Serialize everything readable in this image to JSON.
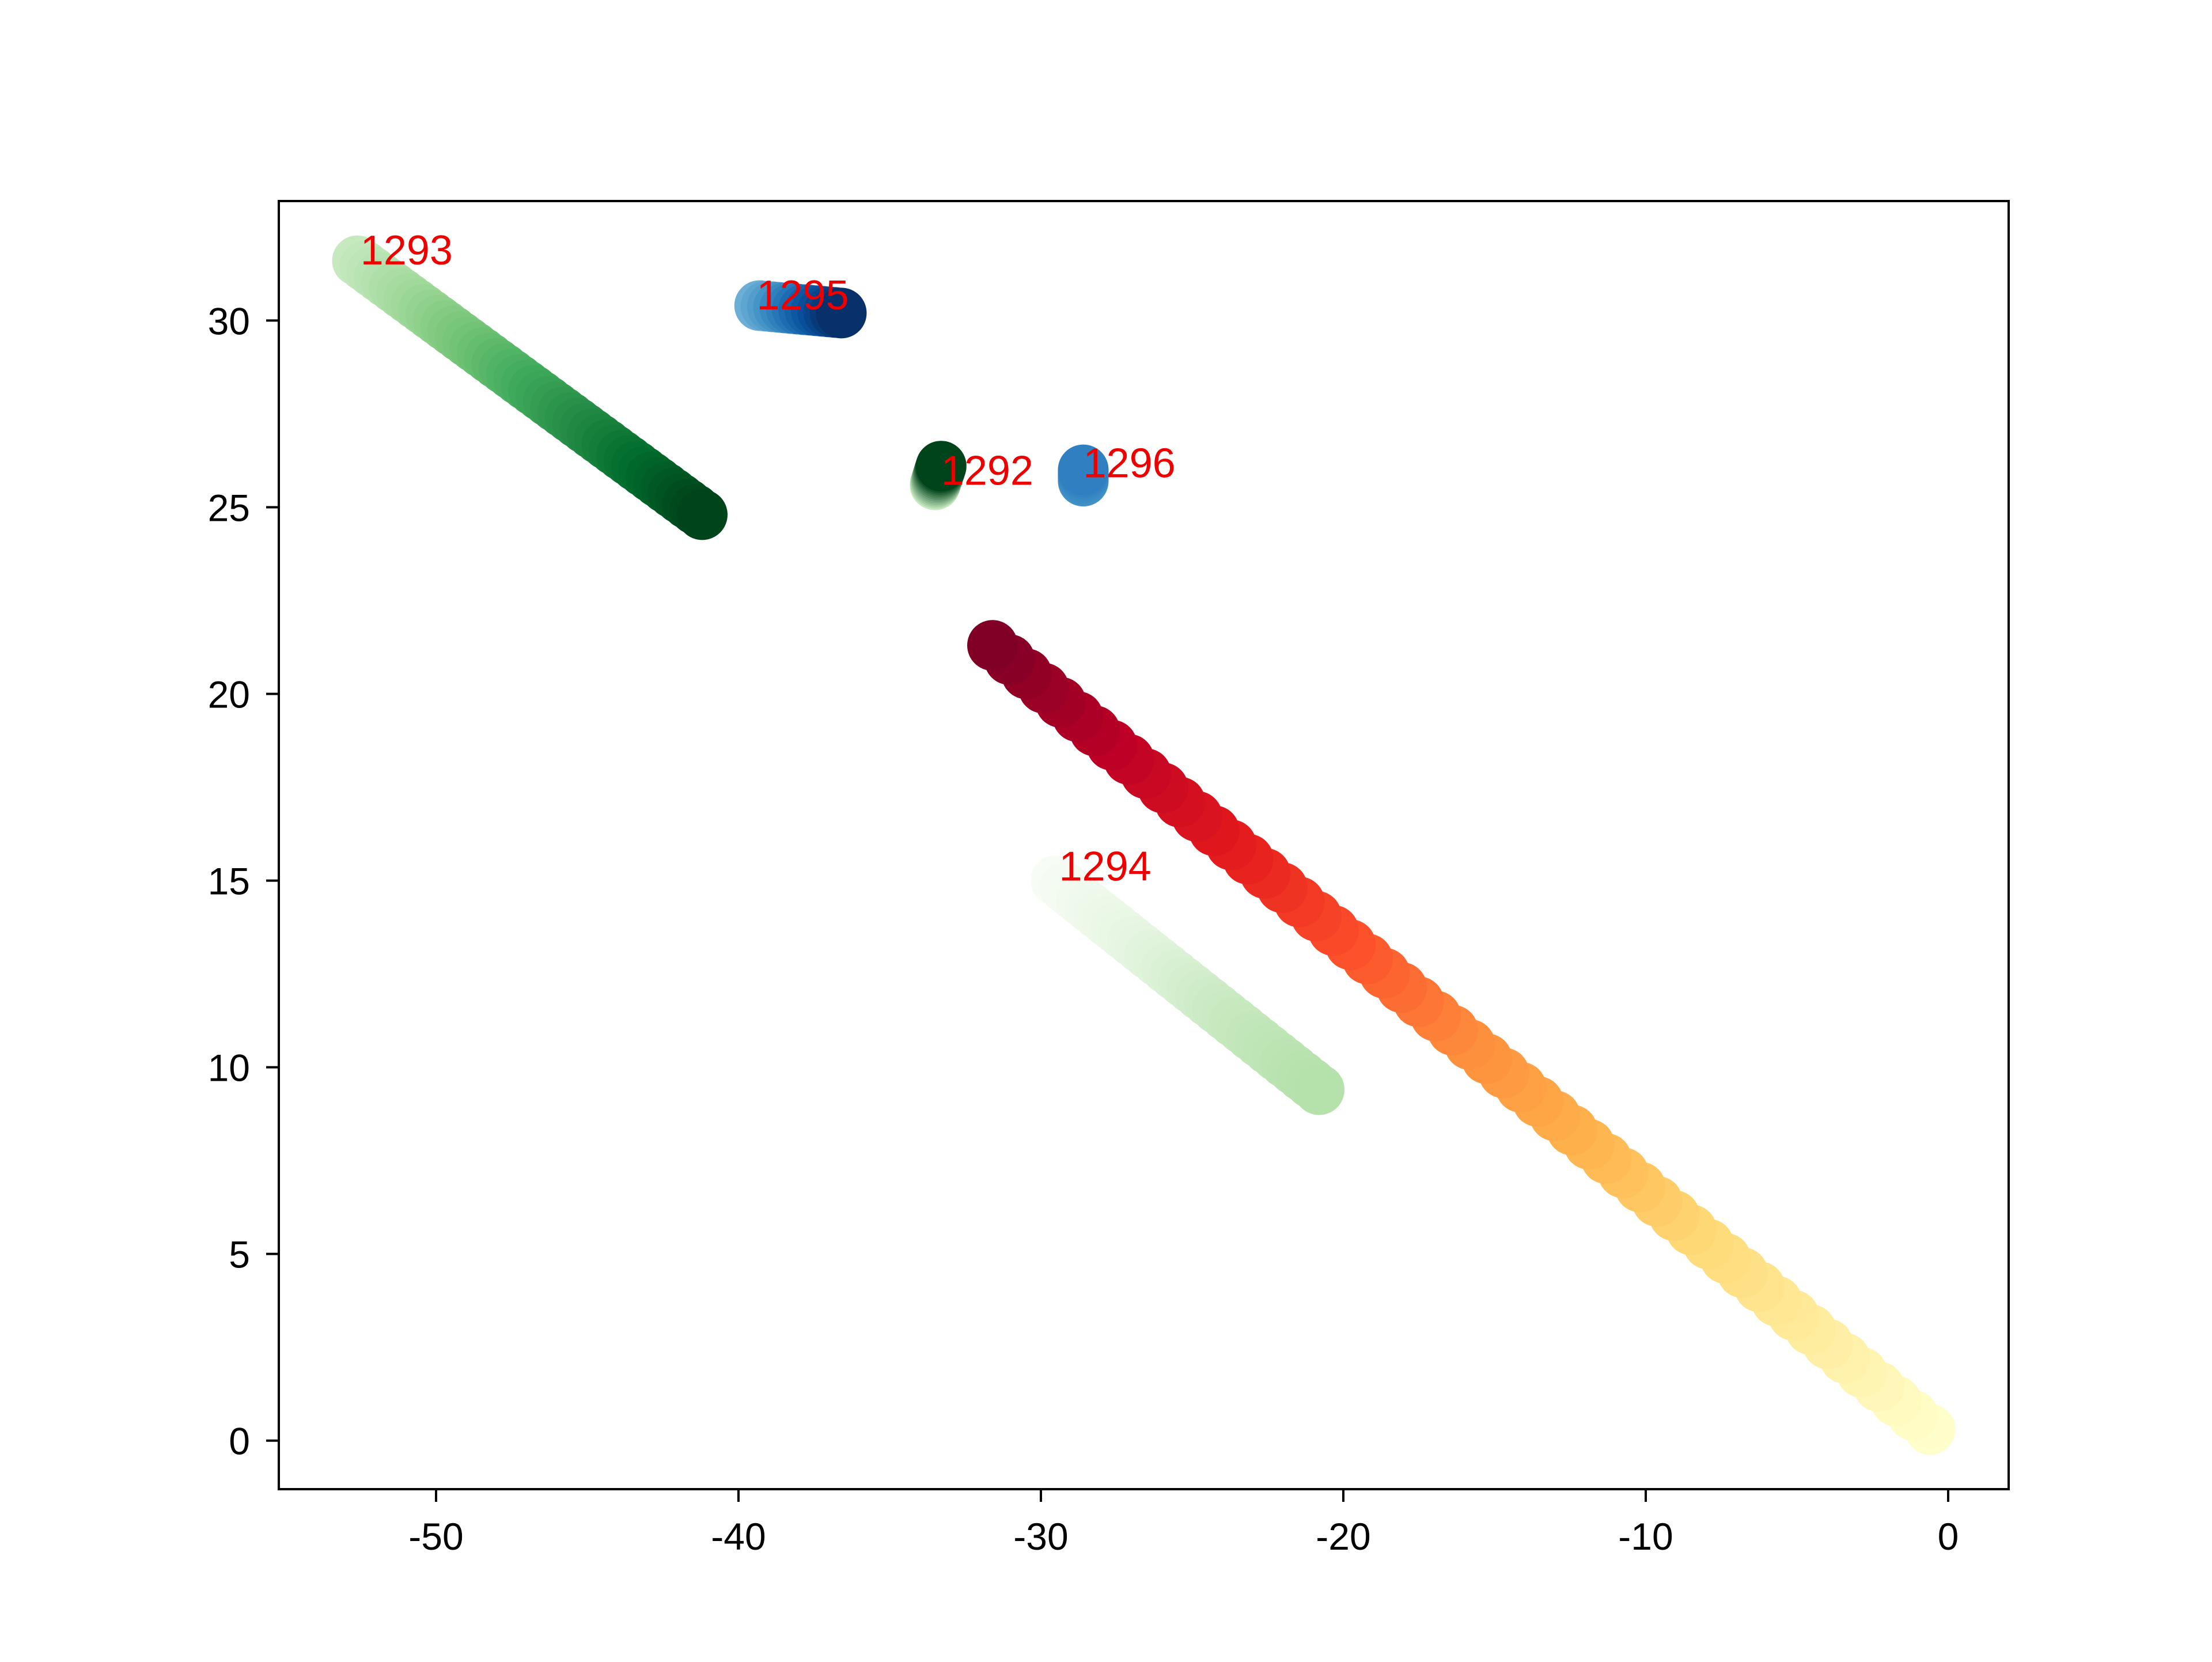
{
  "chart_data": {
    "type": "scatter",
    "title": "",
    "xlabel": "",
    "ylabel": "",
    "xlim": [
      -55.2,
      2.0
    ],
    "ylim": [
      -1.3,
      33.2
    ],
    "grid": false,
    "legend": "none",
    "x_ticks": [
      "-50",
      "-40",
      "-30",
      "-20",
      "-10",
      "0"
    ],
    "x_tick_values": [
      -50,
      -40,
      -30,
      -20,
      -10,
      0
    ],
    "y_ticks": [
      "0",
      "5",
      "10",
      "15",
      "20",
      "25",
      "30"
    ],
    "y_tick_values": [
      0,
      5,
      10,
      15,
      20,
      25,
      30
    ],
    "annotation_color": "#ee0000",
    "series": [
      {
        "label": "1292",
        "label_at": [
          -33.3,
          25.6
        ],
        "start": [
          -33.5,
          25.6
        ],
        "end": [
          -33.3,
          26.1
        ],
        "points": 12,
        "colors": [
          "#c7e9c0",
          "#00441b"
        ]
      },
      {
        "label": "1293",
        "label_at": [
          -52.5,
          31.5
        ],
        "start": [
          -52.6,
          31.6
        ],
        "end": [
          -41.2,
          24.8
        ],
        "points": 48,
        "colors": [
          "#c7e9c0",
          "#a1d99b",
          "#74c476",
          "#41ab5d",
          "#238b45",
          "#006d2c",
          "#00441b"
        ]
      },
      {
        "label": "1294",
        "label_at": [
          -29.4,
          15.0
        ],
        "start": [
          -29.5,
          15.0
        ],
        "end": [
          -20.8,
          9.4
        ],
        "points": 32,
        "colors": [
          "#f7fcf5",
          "#e5f5e0",
          "#c7e9c0",
          "#b5e1ab"
        ]
      },
      {
        "label": "1295",
        "label_at": [
          -39.4,
          30.3
        ],
        "start": [
          -39.3,
          30.4
        ],
        "end": [
          -36.6,
          30.2
        ],
        "points": 14,
        "colors": [
          "#6baed6",
          "#4292c6",
          "#2171b5",
          "#08519c",
          "#08306b"
        ]
      },
      {
        "label": "1296",
        "label_at": [
          -28.6,
          25.8
        ],
        "start": [
          -28.6,
          25.7
        ],
        "end": [
          -28.6,
          26.0
        ],
        "points": 6,
        "colors": [
          "#4292c6",
          "#2f7fc1"
        ]
      },
      {
        "label": "",
        "label_at": null,
        "start": [
          -0.6,
          0.3
        ],
        "end": [
          -31.6,
          21.3
        ],
        "points": 56,
        "colors": [
          "#ffffcc",
          "#ffeda0",
          "#fed976",
          "#feb24c",
          "#fd8d3c",
          "#fc4e2a",
          "#e31a1c",
          "#bd0026",
          "#800026"
        ]
      }
    ]
  }
}
